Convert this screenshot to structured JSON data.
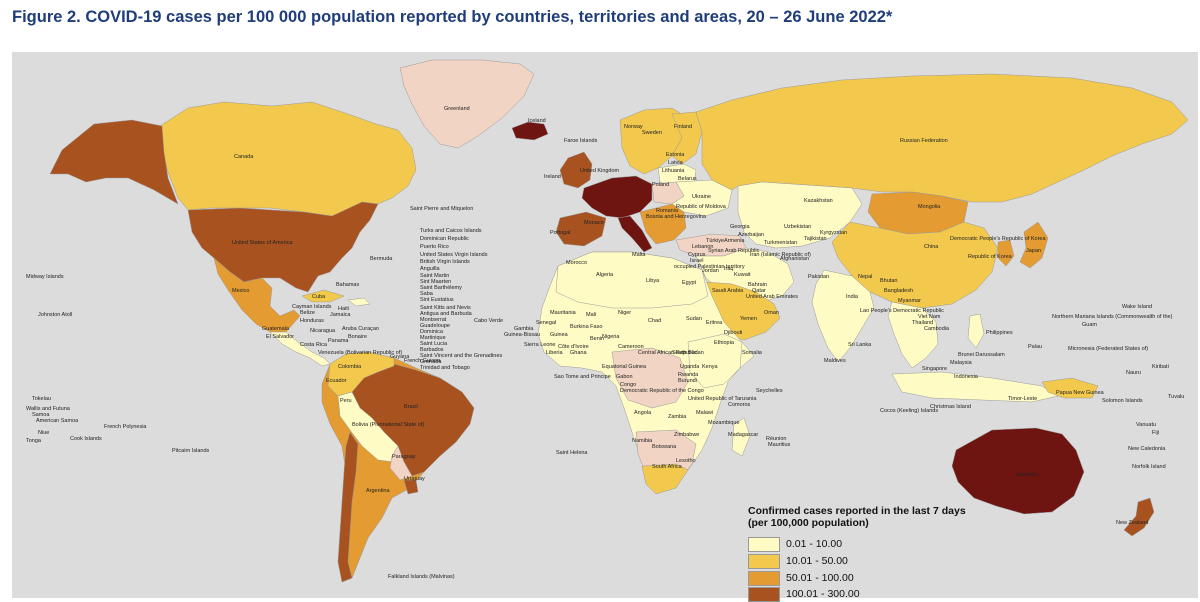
{
  "title": "Figure 2. COVID-19 cases per 100 000 population reported by countries, territories and areas, 20 – 26 June 2022*",
  "legend": {
    "title_line1": "Confirmed cases reported in the last 7 days",
    "title_line2": "(per 100,000 population)",
    "items": [
      {
        "label": "0.01 - 10.00",
        "color": "#fefbc4"
      },
      {
        "label": "10.01 - 50.00",
        "color": "#f2c94c"
      },
      {
        "label": "50.01 - 100.00",
        "color": "#e39b32"
      },
      {
        "label": "100.01 - 300.00",
        "color": "#a85220"
      }
    ]
  },
  "colors": {
    "ocean": "#dcdcdc",
    "class_1": "#fefbc4",
    "class_2": "#f2c94c",
    "class_3": "#e39b32",
    "class_4": "#a85220",
    "class_5": "#6e1511",
    "no_data": "#f2d4c4",
    "not_applicable": "#bdbdbd"
  },
  "places": {
    "greenland": "Greenland",
    "iceland": "Iceland",
    "faroe": "Faroe Islands",
    "canada": "Canada",
    "usa": "United States of America",
    "russia": "Russian Federation",
    "spm": "Saint Pierre and Miquelon",
    "bermuda": "Bermuda",
    "midway": "Midway Islands",
    "johnston": "Johnston Atoll",
    "mexico": "Mexico",
    "bahamas": "Bahamas",
    "cuba": "Cuba",
    "cayman": "Cayman Islands",
    "belize": "Belize",
    "jamaica": "Jamaica",
    "haiti": "Haiti",
    "honduras": "Honduras",
    "guatemala": "Guatemala",
    "el_salvador": "El Salvador",
    "nicaragua": "Nicaragua",
    "costa_rica": "Costa Rica",
    "panama": "Panama",
    "aruba": "Aruba Curaçao",
    "bonaire": "Bonaire",
    "venezuela": "Venezuela (Bolivarian Republic of)",
    "guyana": "Guyana",
    "french_guiana": "French Guiana",
    "colombia": "Colombia",
    "ecuador": "Ecuador",
    "peru": "Peru",
    "brazil": "Brazil",
    "bolivia": "Bolivia (Plurinational State of)",
    "paraguay": "Paraguay",
    "uruguay": "Uruguay",
    "argentina": "Argentina",
    "chile": "Chile",
    "falklands": "Falkland Islands (Malvinas)",
    "caribbean_1": "Turks and Caicos Islands",
    "caribbean_2": "Dominican Republic",
    "caribbean_3": "Puerto Rico",
    "caribbean_4": "United States Virgin Islands",
    "caribbean_5": "British Virgin Islands",
    "caribbean_6": "Anguilla",
    "caribbean_7": "Saint Martin",
    "caribbean_8": "Sint Maarten",
    "caribbean_9": "Saint Barthélemy",
    "caribbean_10": "Saba",
    "caribbean_11": "Sint Eustatius",
    "caribbean_12": "Saint Kitts and Nevis",
    "caribbean_13": "Antigua and Barbuda",
    "caribbean_14": "Montserrat",
    "caribbean_15": "Guadeloupe",
    "caribbean_16": "Dominica",
    "caribbean_17": "Martinique",
    "caribbean_18": "Saint Lucia",
    "caribbean_19": "Barbados",
    "caribbean_20": "Saint Vincent and the Grenadines",
    "caribbean_21": "Grenada",
    "caribbean_22": "Trinidad and Tobago",
    "cabo_verde": "Cabo Verde",
    "norway": "Norway",
    "sweden": "Sweden",
    "finland": "Finland",
    "estonia": "Estonia",
    "latvia": "Latvia",
    "lithuania": "Lithuania",
    "belarus": "Belarus",
    "ukraine": "Ukraine",
    "uk": "United Kingdom",
    "ireland": "Ireland",
    "poland": "Poland",
    "moldova": "Republic of Moldova",
    "romania": "Romania",
    "bosnia": "Bosnia and Herzegovina",
    "portugal": "Portugal",
    "monaco": "Monaco",
    "malta": "Malta",
    "morocco": "Morocco",
    "algeria": "Algeria",
    "libya": "Libya",
    "egypt": "Egypt",
    "turkiye": "Türkiye",
    "cyprus": "Cyprus",
    "syria": "Syrian Arab Republic",
    "lebanon": "Lebanon",
    "israel": "Israel",
    "palestine": "occupied Palestinian territory",
    "jordan": "Jordan",
    "iraq": "Iraq",
    "georgia": "Georgia",
    "azerbaijan": "Azerbaijan",
    "armenia": "Armenia",
    "kazakhstan": "Kazakhstan",
    "uzbekistan": "Uzbekistan",
    "turkmenistan": "Turkmenistan",
    "kyrgyzstan": "Kyrgyzstan",
    "tajikistan": "Tajikistan",
    "afghanistan": "Afghanistan",
    "pakistan": "Pakistan",
    "iran": "Iran (Islamic Republic of)",
    "kuwait": "Kuwait",
    "bahrain": "Bahrain",
    "qatar": "Qatar",
    "uae": "United Arab Emirates",
    "saudi": "Saudi Arabia",
    "oman": "Oman",
    "yemen": "Yemen",
    "mongolia": "Mongolia",
    "china": "China",
    "dprk": "Democratic People's Republic of Korea",
    "rok": "Republic of Korea",
    "japan": "Japan",
    "india": "India",
    "nepal": "Nepal",
    "bhutan": "Bhutan",
    "bangladesh": "Bangladesh",
    "myanmar": "Myanmar",
    "lao": "Lao People's Democratic Republic",
    "viet_nam": "Viet Nam",
    "thailand": "Thailand",
    "cambodia": "Cambodia",
    "sri_lanka": "Sri Lanka",
    "maldives": "Maldives",
    "philippines": "Philippines",
    "brunei": "Brunei Darussalam",
    "malaysia": "Malaysia",
    "singapore": "Singapore",
    "indonesia": "Indonesia",
    "timor_leste": "Timor-Leste",
    "png": "Papua New Guinea",
    "christmas": "Christmas Island",
    "cocos": "Cocos (Keeling) Islands",
    "australia": "Australia",
    "new_zealand": "New Zealand",
    "new_caledonia": "New Caledonia",
    "vanuatu": "Vanuatu",
    "fiji": "Fiji",
    "norfolk": "Norfolk Island",
    "solomon": "Solomon Islands",
    "nauru": "Nauru",
    "kiribati": "Kiribati",
    "tuvalu": "Tuvalu",
    "palau": "Palau",
    "micronesia": "Micronesia (Federated States of)",
    "guam": "Guam",
    "nmi": "Northern Mariana Islands (Commonwealth of the)",
    "wake": "Wake Island",
    "mauritania": "Mauritania",
    "mali": "Mali",
    "niger": "Niger",
    "chad": "Chad",
    "sudan": "Sudan",
    "eritrea": "Eritrea",
    "djibouti": "Djibouti",
    "ethiopia": "Ethiopia",
    "somalia": "Somalia",
    "senegal": "Senegal",
    "gambia": "Gambia",
    "guinea_bissau": "Guinea-Bissau",
    "guinea": "Guinea",
    "sierra_leone": "Sierra Leone",
    "liberia": "Liberia",
    "cote_divoire": "Côte d'Ivoire",
    "burkina_faso": "Burkina Faso",
    "ghana": "Ghana",
    "benin": "Benin",
    "nigeria": "Nigeria",
    "cameroon": "Cameroon",
    "car": "Central African Republic",
    "south_sudan": "South Sudan",
    "equatorial_guinea": "Equatorial Guinea",
    "gabon": "Gabon",
    "congo": "Congo",
    "drc": "Democratic Republic of the Congo",
    "uganda": "Uganda",
    "kenya": "Kenya",
    "rwanda": "Rwanda",
    "burundi": "Burundi",
    "tanzania": "United Republic of Tanzania",
    "sao_tome": "Sao Tome and Principe",
    "angola": "Angola",
    "zambia": "Zambia",
    "malawi": "Malawi",
    "mozambique": "Mozambique",
    "zimbabwe": "Zimbabwe",
    "namibia": "Namibia",
    "botswana": "Botswana",
    "south_africa": "South Africa",
    "lesotho": "Lesotho",
    "madagascar": "Madagascar",
    "comoros": "Comoros",
    "seychelles": "Seychelles",
    "reunion": "Réunion",
    "mauritius": "Mauritius",
    "saint_helena": "Saint Helena",
    "pitcairn": "Pitcairn Islands",
    "french_polynesia": "French Polynesia",
    "cook": "Cook Islands",
    "niue": "Niue",
    "tonga": "Tonga",
    "american_samoa": "American Samoa",
    "samoa": "Samoa",
    "wallis": "Wallis and Futuna",
    "tokelau": "Tokelau"
  }
}
